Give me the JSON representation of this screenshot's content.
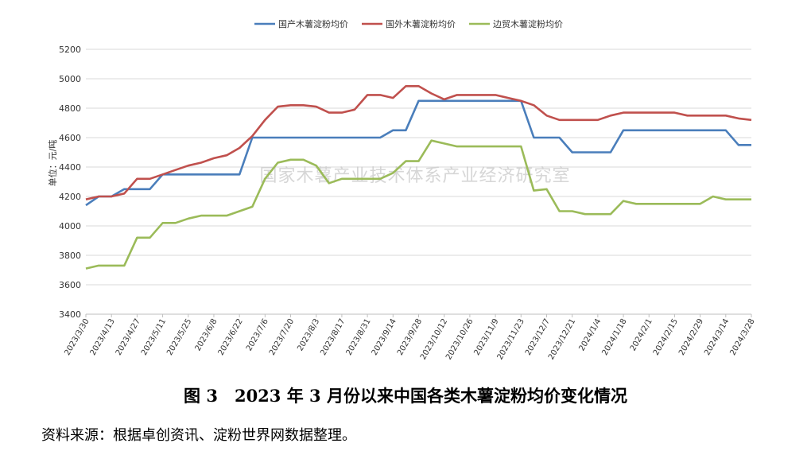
{
  "figure": {
    "caption": "图 3　2023 年 3 月份以来中国各类木薯淀粉均价变化情况",
    "source": "资料来源：根据卓创资讯、淀粉世界网数据整理。",
    "watermark": "国家木薯产业技术体系产业经济研究室"
  },
  "chart_data": {
    "type": "line",
    "ylabel": "单位：元/吨",
    "ylim": [
      3400,
      5200
    ],
    "yticks": [
      3400,
      3600,
      3800,
      4000,
      4200,
      4400,
      4600,
      4800,
      5000,
      5200
    ],
    "grid": "horizontal",
    "legend_position": "top-center",
    "x_tick_labels": [
      "2023/3/30",
      "2023/4/13",
      "2023/4/27",
      "2023/5/11",
      "2023/5/25",
      "2023/6/8",
      "2023/6/22",
      "2023/7/6",
      "2023/7/20",
      "2023/8/3",
      "2023/8/17",
      "2023/8/31",
      "2023/9/14",
      "2023/9/28",
      "2023/10/12",
      "2023/10/26",
      "2023/11/9",
      "2023/11/23",
      "2023/12/7",
      "2023/12/21",
      "2024/1/4",
      "2024/1/18",
      "2024/2/1",
      "2024/2/15",
      "2024/2/29",
      "2024/3/14",
      "2024/3/28"
    ],
    "x": [
      "2023/3/30",
      "2023/4/6",
      "2023/4/13",
      "2023/4/20",
      "2023/4/27",
      "2023/5/4",
      "2023/5/11",
      "2023/5/18",
      "2023/5/25",
      "2023/6/1",
      "2023/6/8",
      "2023/6/15",
      "2023/6/22",
      "2023/6/29",
      "2023/7/6",
      "2023/7/13",
      "2023/7/20",
      "2023/7/27",
      "2023/8/3",
      "2023/8/10",
      "2023/8/17",
      "2023/8/24",
      "2023/8/31",
      "2023/9/7",
      "2023/9/14",
      "2023/9/21",
      "2023/9/28",
      "2023/10/5",
      "2023/10/12",
      "2023/10/19",
      "2023/10/26",
      "2023/11/2",
      "2023/11/9",
      "2023/11/16",
      "2023/11/23",
      "2023/11/30",
      "2023/12/7",
      "2023/12/14",
      "2023/12/21",
      "2023/12/28",
      "2024/1/4",
      "2024/1/11",
      "2024/1/18",
      "2024/1/25",
      "2024/2/1",
      "2024/2/8",
      "2024/2/15",
      "2024/2/22",
      "2024/2/29",
      "2024/3/7",
      "2024/3/14",
      "2024/3/21",
      "2024/3/28"
    ],
    "series": [
      {
        "name": "国产木薯淀粉均价",
        "color": "#4a7ebb",
        "values": [
          4140,
          4200,
          4200,
          4250,
          4250,
          4250,
          4350,
          4350,
          4350,
          4350,
          4350,
          4350,
          4350,
          4600,
          4600,
          4600,
          4600,
          4600,
          4600,
          4600,
          4600,
          4600,
          4600,
          4600,
          4650,
          4650,
          4850,
          4850,
          4850,
          4850,
          4850,
          4850,
          4850,
          4850,
          4850,
          4600,
          4600,
          4600,
          4500,
          4500,
          4500,
          4500,
          4650,
          4650,
          4650,
          4650,
          4650,
          4650,
          4650,
          4650,
          4650,
          4550,
          4550
        ]
      },
      {
        "name": "国外木薯淀粉均价",
        "color": "#c0504d",
        "values": [
          4180,
          4200,
          4200,
          4220,
          4320,
          4320,
          4350,
          4380,
          4410,
          4430,
          4460,
          4480,
          4530,
          4610,
          4720,
          4810,
          4820,
          4820,
          4810,
          4770,
          4770,
          4790,
          4890,
          4890,
          4870,
          4950,
          4950,
          4900,
          4860,
          4890,
          4890,
          4890,
          4890,
          4870,
          4850,
          4820,
          4750,
          4720,
          4720,
          4720,
          4720,
          4750,
          4770,
          4770,
          4770,
          4770,
          4770,
          4750,
          4750,
          4750,
          4750,
          4730,
          4720
        ]
      },
      {
        "name": "边贸木薯淀粉均价",
        "color": "#9bbb59",
        "values": [
          3710,
          3730,
          3730,
          3730,
          3920,
          3920,
          4020,
          4020,
          4050,
          4070,
          4070,
          4070,
          4100,
          4130,
          4320,
          4430,
          4450,
          4450,
          4410,
          4290,
          4320,
          4320,
          4320,
          4320,
          4360,
          4440,
          4440,
          4580,
          4560,
          4540,
          4540,
          4540,
          4540,
          4540,
          4540,
          4240,
          4250,
          4100,
          4100,
          4080,
          4080,
          4080,
          4170,
          4150,
          4150,
          4150,
          4150,
          4150,
          4150,
          4200,
          4180,
          4180,
          4180
        ]
      }
    ]
  }
}
